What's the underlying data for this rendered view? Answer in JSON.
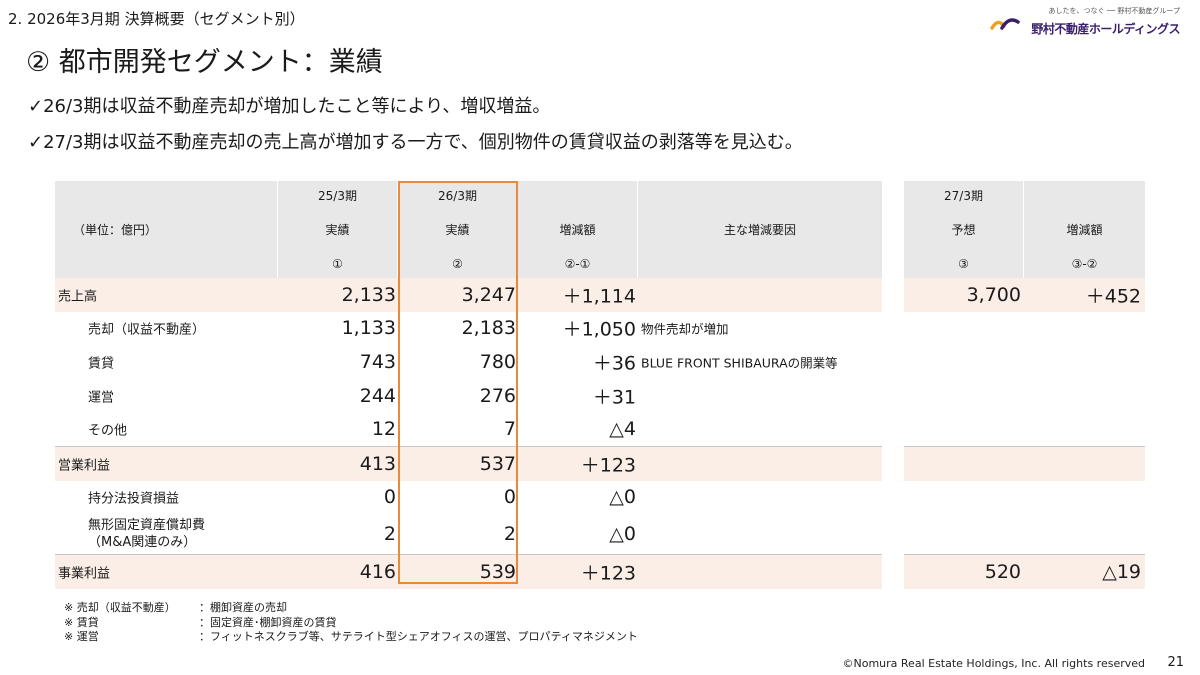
{
  "header": {
    "section": "2. 2026年3月期 決算概要（セグメント別）",
    "title": "② 都市開発セグメント：業績",
    "logo_tagline": "あしたを、つなぐ ── 野村不動産グループ",
    "logo_name": "野村不動産ホールディングス"
  },
  "bullets": [
    "✓26/3期は収益不動産売却が増加したこと等により、増収増益。",
    "✓27/3期は収益不動産売却の売上高が増加する一方で、個別物件の賃貸収益の剥落等を見込む。"
  ],
  "table": {
    "unit_label": "（単位：億円）",
    "columns": [
      {
        "l1": "25/3期",
        "l2": "実績",
        "l3": "①"
      },
      {
        "l1": "26/3期",
        "l2": "実績",
        "l3": "②"
      },
      {
        "l1": "",
        "l2": "増減額",
        "l3": "②-①"
      }
    ],
    "drivers_header": "主な増減要因",
    "forecast_columns": [
      {
        "l1": "27/3期",
        "l2": "予想",
        "l3": "③"
      },
      {
        "l1": "",
        "l2": "増減額",
        "l3": "③-②"
      }
    ],
    "rows": [
      {
        "label": "売上高",
        "fy25": "2,133",
        "fy26": "3,247",
        "diff": "＋1,114",
        "driver": "",
        "fy27": "3,700",
        "diff27": "＋452"
      },
      {
        "label": "売却（収益不動産）",
        "fy25": "1,133",
        "fy26": "2,183",
        "diff": "＋1,050",
        "driver": "物件売却が増加",
        "fy27": "",
        "diff27": ""
      },
      {
        "label": "賃貸",
        "fy25": "743",
        "fy26": "780",
        "diff": "＋36",
        "driver": "BLUE FRONT SHIBAURAの開業等",
        "fy27": "",
        "diff27": ""
      },
      {
        "label": "運営",
        "fy25": "244",
        "fy26": "276",
        "diff": "＋31",
        "driver": "",
        "fy27": "",
        "diff27": ""
      },
      {
        "label": "その他",
        "fy25": "12",
        "fy26": "7",
        "diff": "△4",
        "driver": "",
        "fy27": "",
        "diff27": ""
      },
      {
        "label": "営業利益",
        "fy25": "413",
        "fy26": "537",
        "diff": "＋123",
        "driver": "",
        "fy27": "",
        "diff27": ""
      },
      {
        "label": "持分法投資損益",
        "fy25": "0",
        "fy26": "0",
        "diff": "△0",
        "driver": "",
        "fy27": "",
        "diff27": ""
      },
      {
        "label": "無形固定資産償却費",
        "label2": "（M&A関連のみ）",
        "fy25": "2",
        "fy26": "2",
        "diff": "△0",
        "driver": "",
        "fy27": "",
        "diff27": ""
      },
      {
        "label": "事業利益",
        "fy25": "416",
        "fy26": "539",
        "diff": "＋123",
        "driver": "",
        "fy27": "520",
        "diff27": "△19"
      }
    ]
  },
  "notes": [
    {
      "key": "※ 売却（収益不動産）",
      "value": "：棚卸資産の売却"
    },
    {
      "key": "※ 賃貸",
      "value": "：固定資産･棚卸資産の賃貸"
    },
    {
      "key": "※ 運営",
      "value": "：フィットネスクラブ等、サテライト型シェアオフィスの運営、プロパティマネジメント"
    }
  ],
  "footer": {
    "copyright": "©Nomura Real Estate Holdings, Inc. All rights reserved",
    "page": "21"
  },
  "colors": {
    "highlight_row": "#fbeee6",
    "header_bg": "#e8e8e8",
    "frame": "#e88a3c",
    "logo_purple": "#3a1f6b",
    "logo_orange": "#f0a020"
  }
}
